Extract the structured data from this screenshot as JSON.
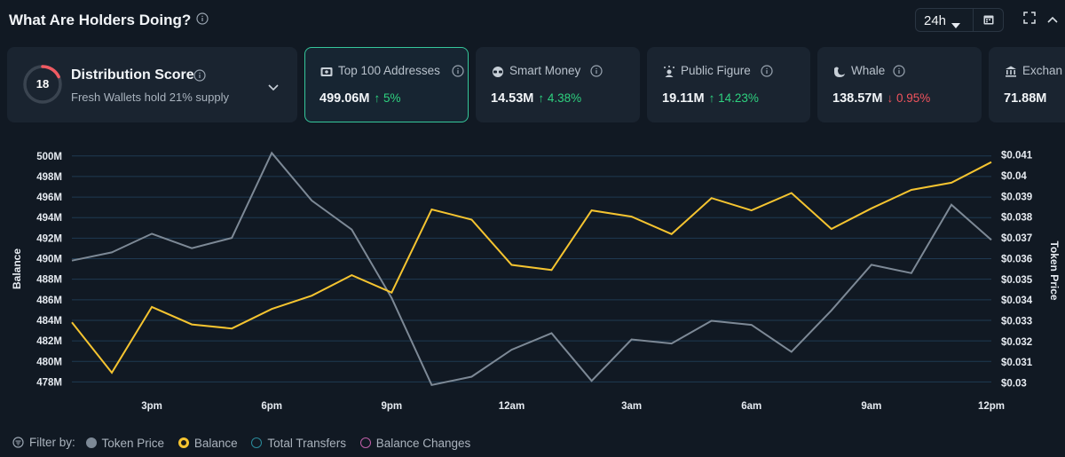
{
  "header": {
    "title": "What Are Holders Doing?",
    "period": "24h"
  },
  "distribution": {
    "score": "18",
    "score_value": 18,
    "score_max": 100,
    "title": "Distribution Score",
    "subtitle": "Fresh Wallets hold 21% supply"
  },
  "cards": [
    {
      "label": "Top 100 Addresses",
      "value": "499.06M",
      "change": "↑ 5%",
      "direction": "up",
      "icon": "wallet-icon",
      "active": true
    },
    {
      "label": "Smart Money",
      "value": "14.53M",
      "change": "↑ 4.38%",
      "direction": "up",
      "icon": "glasses-icon",
      "active": false
    },
    {
      "label": "Public Figure",
      "value": "19.11M",
      "change": "↑ 14.23%",
      "direction": "up",
      "icon": "sparkle-person-icon",
      "active": false
    },
    {
      "label": "Whale",
      "value": "138.57M",
      "change": "↓ 0.95%",
      "direction": "down",
      "icon": "whale-icon",
      "active": false
    },
    {
      "label": "Exchan",
      "value": "71.88M",
      "change": "",
      "direction": "down",
      "icon": "bank-icon",
      "active": false
    }
  ],
  "chart_data": {
    "type": "line",
    "xlabel": "",
    "ylabel": "Balance",
    "y2label": "Token Price",
    "x_ticks": [
      "3pm",
      "6pm",
      "9pm",
      "12am",
      "3am",
      "6am",
      "9am",
      "12pm"
    ],
    "x_tick_positions": [
      3,
      6,
      9,
      12,
      15,
      18,
      21,
      24
    ],
    "x_range": [
      1,
      24
    ],
    "ylim": [
      477,
      500.5
    ],
    "y_ticks": [
      "500M",
      "498M",
      "496M",
      "494M",
      "492M",
      "490M",
      "488M",
      "486M",
      "484M",
      "482M",
      "480M",
      "478M"
    ],
    "y_tick_values": [
      500,
      498,
      496,
      494,
      492,
      490,
      488,
      486,
      484,
      482,
      480,
      478
    ],
    "y2lim": [
      0.02955,
      0.0412
    ],
    "y2_ticks": [
      "$0.041",
      "$0.04",
      "$0.039",
      "$0.038",
      "$0.037",
      "$0.036",
      "$0.035",
      "$0.034",
      "$0.033",
      "$0.032",
      "$0.031",
      "$0.03"
    ],
    "y2_tick_values": [
      0.041,
      0.04,
      0.039,
      0.038,
      0.037,
      0.036,
      0.035,
      0.034,
      0.033,
      0.032,
      0.031,
      0.03
    ],
    "grid": true,
    "series": [
      {
        "name": "Balance",
        "axis": "left",
        "color": "#f5c430",
        "x": [
          1,
          2,
          3,
          4,
          5,
          6,
          7,
          8,
          9,
          10,
          11,
          12,
          13,
          14,
          15,
          16,
          17,
          18,
          19,
          20,
          21,
          22,
          23,
          24
        ],
        "values": [
          483.8,
          478.9,
          485.3,
          483.6,
          483.2,
          485.1,
          486.4,
          488.4,
          486.7,
          494.8,
          493.8,
          489.4,
          488.9,
          494.7,
          494.1,
          492.4,
          495.9,
          494.7,
          496.4,
          492.9,
          494.9,
          496.7,
          497.4,
          499.4
        ]
      },
      {
        "name": "Token Price",
        "axis": "right",
        "color": "#7d8996",
        "x": [
          1,
          2,
          3,
          4,
          5,
          6,
          7,
          8,
          9,
          10,
          11,
          12,
          13,
          14,
          15,
          16,
          17,
          18,
          19,
          20,
          21,
          22,
          23,
          24
        ],
        "values": [
          0.0359,
          0.0363,
          0.0372,
          0.0365,
          0.037,
          0.0411,
          0.0388,
          0.0374,
          0.0341,
          0.0299,
          0.0303,
          0.0316,
          0.0324,
          0.0301,
          0.0321,
          0.0319,
          0.033,
          0.0328,
          0.0315,
          0.0335,
          0.0357,
          0.0353,
          0.0386,
          0.0369
        ]
      }
    ]
  },
  "filter": {
    "label": "Filter by:",
    "items": [
      {
        "label": "Token Price",
        "color": "#7d8996",
        "filled": true
      },
      {
        "label": "Balance",
        "color": "#f5c430",
        "filled": true
      },
      {
        "label": "Total Transfers",
        "color": "#2a8a9a",
        "filled": false
      },
      {
        "label": "Balance Changes",
        "color": "#c05fa8",
        "filled": false
      }
    ]
  }
}
